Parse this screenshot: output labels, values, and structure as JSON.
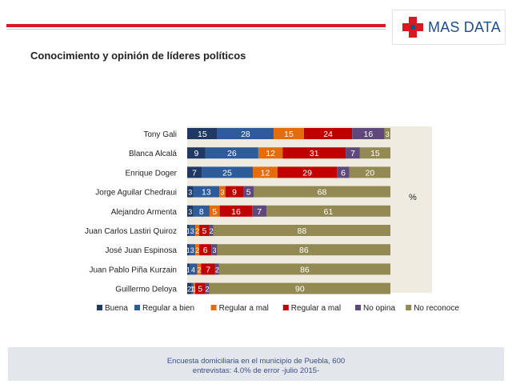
{
  "header": {
    "logo_text": "MAS DATA",
    "title": "Conocimiento y opinión de líderes políticos"
  },
  "chart_data": {
    "type": "bar",
    "orientation": "horizontal",
    "stacked": true,
    "title": "Conocimiento y opinión de líderes políticos",
    "axis_note": "%",
    "categories": [
      "Tony Gali",
      "Blanca Alcalá",
      "Enrique Doger",
      "Jorge Aguilar Chedraui",
      "Alejandro Armenta",
      "Juan Carlos Lastiri Quiroz",
      "José Juan Espinosa",
      "Juan Pablo Piña Kurzain",
      "Guillermo Deloya"
    ],
    "xlim": [
      0,
      100
    ],
    "legend_position": "bottom",
    "series": [
      {
        "name": "Buena",
        "color": "#1f3864",
        "values": [
          15,
          9,
          7,
          3,
          3,
          1,
          1,
          1,
          2
        ]
      },
      {
        "name": "Regular a bien",
        "color": "#2e5c9a",
        "values": [
          28,
          26,
          25,
          13,
          8,
          3,
          3,
          4,
          1
        ]
      },
      {
        "name": "Regular a mal",
        "color": "#e46c0a",
        "values": [
          15,
          12,
          12,
          3,
          5,
          2,
          2,
          2,
          1
        ]
      },
      {
        "name": "Regular a mal",
        "color": "#c00000",
        "values": [
          24,
          31,
          29,
          9,
          16,
          5,
          6,
          7,
          5
        ]
      },
      {
        "name": "No opina",
        "color": "#5f497a",
        "values": [
          16,
          7,
          6,
          5,
          7,
          2,
          3,
          2,
          2
        ]
      },
      {
        "name": "No reconoce",
        "color": "#938953",
        "values": [
          3,
          15,
          20,
          68,
          61,
          88,
          86,
          86,
          90
        ]
      }
    ]
  },
  "footer": {
    "line1": "Encuesta domiciliaria en el municipio de Puebla, 600",
    "line2": "entrevistas: 4.0% de error -julio 2015-"
  }
}
